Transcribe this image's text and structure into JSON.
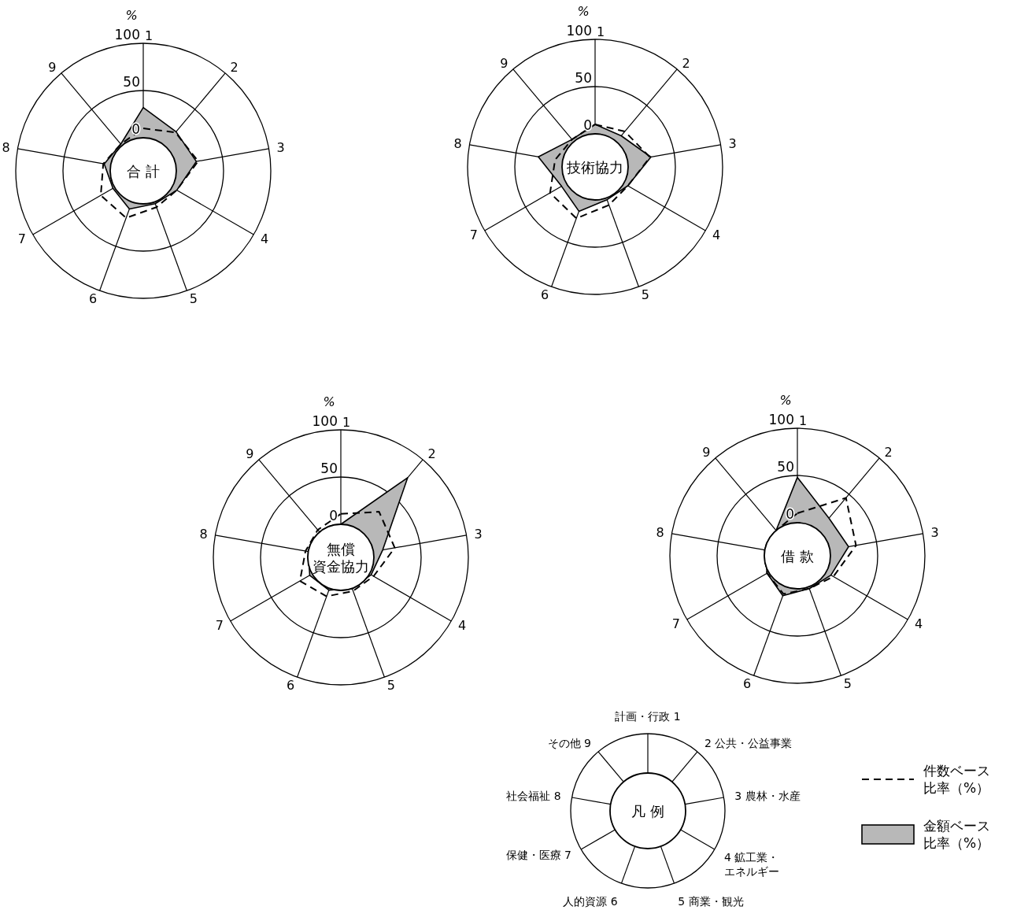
{
  "chart_data": [
    {
      "type": "radar",
      "title": "合 計",
      "ylabel": "%",
      "categories": [
        "1",
        "2",
        "3",
        "4",
        "5",
        "6",
        "7",
        "8",
        "9"
      ],
      "ylim": [
        -35,
        100
      ],
      "yticks": [
        0,
        50,
        100
      ],
      "line_style": "dashed",
      "series": [
        {
          "type": "area",
          "color": "#b8b8b8",
          "values": [
            32,
            19,
            22,
            6,
            2,
            8,
            2,
            7,
            2
          ]
        },
        {
          "color": "#000000",
          "values": [
            10,
            18,
            24,
            6,
            6,
            18,
            17,
            8,
            2
          ]
        }
      ]
    },
    {
      "type": "radar",
      "title": "技術協力",
      "ylabel": "%",
      "categories": [
        "1",
        "2",
        "3",
        "4",
        "5",
        "6",
        "7",
        "8",
        "9"
      ],
      "ylim": [
        -35,
        100
      ],
      "yticks": [
        0,
        50,
        100
      ],
      "line_style": "dashed",
      "series": [
        {
          "type": "area",
          "color": "#b8b8b8",
          "values": [
            10,
            8,
            25,
            5,
            2,
            15,
            6,
            26,
            3
          ]
        },
        {
          "color": "#000000",
          "values": [
            10,
            14,
            24,
            5,
            8,
            23,
            20,
            8,
            3
          ]
        }
      ]
    },
    {
      "type": "radar",
      "title": "無償資金協力",
      "ylabel": "%",
      "categories": [
        "1",
        "2",
        "3",
        "4",
        "5",
        "6",
        "7",
        "8",
        "9"
      ],
      "ylim": [
        -35,
        100
      ],
      "yticks": [
        0,
        50,
        100
      ],
      "line_style": "dashed",
      "series": [
        {
          "type": "area",
          "color": "#b8b8b8",
          "values": [
            0,
            75,
            10,
            2,
            0,
            2,
            3,
            0,
            0
          ]
        },
        {
          "color": "#000000",
          "values": [
            11,
            28,
            23,
            5,
            3,
            9,
            15,
            3,
            3
          ]
        }
      ]
    },
    {
      "type": "radar",
      "title": "借 款",
      "ylabel": "%",
      "categories": [
        "1",
        "2",
        "3",
        "4",
        "5",
        "6",
        "7",
        "8",
        "9"
      ],
      "ylim": [
        -35,
        100
      ],
      "yticks": [
        0,
        50,
        100
      ],
      "line_style": "dashed",
      "legend": "bottom right",
      "series": [
        {
          "name": "金額ベース比率（%）",
          "type": "area",
          "color": "#b8b8b8",
          "values": [
            48,
            17,
            20,
            6,
            2,
            10,
            2,
            0,
            0
          ]
        },
        {
          "name": "件数ベース比率（%）",
          "color": "#000000",
          "values": [
            10,
            45,
            28,
            9,
            2,
            8,
            2,
            0,
            0
          ]
        }
      ]
    },
    {
      "type": "other",
      "title": "凡 例",
      "annotations": [
        "計画・行政 1",
        "2 公共・公益事業",
        "3 農林・水産",
        "4 鉱工業・エネルギー",
        "5 商業・観光",
        "人的資源 6",
        "保健・医療 7",
        "社会福祉 8",
        "その他 9"
      ]
    }
  ]
}
